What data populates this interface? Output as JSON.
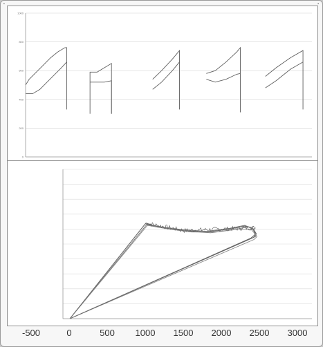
{
  "chart_data": [
    {
      "type": "line",
      "title": "",
      "xlabel": "",
      "ylabel": "",
      "y_ticks": [
        "0",
        "200",
        "400",
        "600",
        "800",
        "1000"
      ],
      "ylim": [
        0,
        1000
      ],
      "grid": true,
      "series": [
        {
          "values": [
            [
              0,
              500
            ],
            [
              2,
              540
            ],
            [
              6,
              590
            ],
            [
              10,
              640
            ],
            [
              14,
              690
            ],
            [
              18,
              730
            ],
            [
              22,
              760
            ],
            [
              23,
              760
            ],
            [
              23,
              330
            ],
            [
              23,
              660
            ]
          ]
        },
        {
          "values": [
            [
              0,
              440
            ],
            [
              4,
              440
            ],
            [
              8,
              470
            ],
            [
              12,
              520
            ],
            [
              16,
              570
            ],
            [
              20,
              620
            ],
            [
              23,
              660
            ]
          ]
        },
        {
          "values": [
            [
              36,
              590
            ],
            [
              36,
              300
            ],
            [
              36,
              590
            ],
            [
              40,
              590
            ],
            [
              44,
              620
            ],
            [
              48,
              650
            ],
            [
              48,
              300
            ]
          ]
        },
        {
          "values": [
            [
              36,
              520
            ],
            [
              44,
              520
            ],
            [
              48,
              530
            ],
            [
              48,
              300
            ]
          ]
        },
        {
          "values": [
            [
              71,
              540
            ],
            [
              76,
              600
            ],
            [
              82,
              680
            ],
            [
              86,
              740
            ],
            [
              86,
              330
            ],
            [
              86,
              660
            ]
          ]
        },
        {
          "values": [
            [
              71,
              470
            ],
            [
              76,
              520
            ],
            [
              82,
              600
            ],
            [
              86,
              660
            ]
          ]
        },
        {
          "values": [
            [
              101,
              580
            ],
            [
              106,
              600
            ],
            [
              112,
              660
            ],
            [
              118,
              730
            ],
            [
              120,
              760
            ],
            [
              120,
              310
            ],
            [
              120,
              580
            ]
          ]
        },
        {
          "values": [
            [
              101,
              540
            ],
            [
              106,
              520
            ],
            [
              112,
              540
            ],
            [
              118,
              575
            ],
            [
              120,
              580
            ]
          ]
        },
        {
          "values": [
            [
              134,
              560
            ],
            [
              140,
              620
            ],
            [
              148,
              690
            ],
            [
              155,
              740
            ],
            [
              155,
              330
            ],
            [
              155,
              660
            ]
          ]
        },
        {
          "values": [
            [
              134,
              480
            ],
            [
              140,
              530
            ],
            [
              148,
              610
            ],
            [
              155,
              660
            ]
          ]
        }
      ]
    },
    {
      "type": "line",
      "title": "",
      "xlabel": "",
      "ylabel": "",
      "x_ticks": [
        "-500",
        "0",
        "500",
        "1000",
        "1500",
        "2000",
        "2500",
        "3000"
      ],
      "xlim": [
        -500,
        3000
      ],
      "ylim": [
        0,
        1000
      ],
      "grid": true,
      "series": [
        {
          "values": [
            [
              0,
              0
            ],
            [
              1000,
              640
            ],
            [
              1200,
              610
            ],
            [
              1500,
              590
            ],
            [
              1800,
              580
            ],
            [
              2100,
              600
            ],
            [
              2300,
              620
            ],
            [
              2400,
              610
            ],
            [
              2450,
              570
            ],
            [
              2380,
              540
            ],
            [
              0,
              0
            ]
          ]
        },
        {
          "values": [
            [
              0,
              0
            ],
            [
              1010,
              630
            ],
            [
              1250,
              605
            ],
            [
              1550,
              585
            ],
            [
              1850,
              575
            ],
            [
              2150,
              595
            ],
            [
              2350,
              615
            ],
            [
              2420,
              590
            ],
            [
              2450,
              560
            ],
            [
              2400,
              540
            ],
            [
              0,
              0
            ]
          ]
        },
        {
          "values": [
            [
              0,
              0
            ],
            [
              1020,
              625
            ],
            [
              1300,
              600
            ],
            [
              1600,
              580
            ],
            [
              1900,
              580
            ],
            [
              2200,
              600
            ],
            [
              2380,
              600
            ],
            [
              2430,
              570
            ],
            [
              2460,
              550
            ],
            [
              2420,
              530
            ],
            [
              0,
              0
            ]
          ]
        },
        {
          "values": [
            [
              0,
              0
            ],
            [
              990,
              635
            ],
            [
              1200,
              615
            ],
            [
              1500,
              595
            ],
            [
              1800,
              585
            ],
            [
              2100,
              605
            ],
            [
              2300,
              625
            ],
            [
              2410,
              600
            ],
            [
              2440,
              550
            ],
            [
              0,
              0
            ]
          ]
        }
      ]
    }
  ]
}
